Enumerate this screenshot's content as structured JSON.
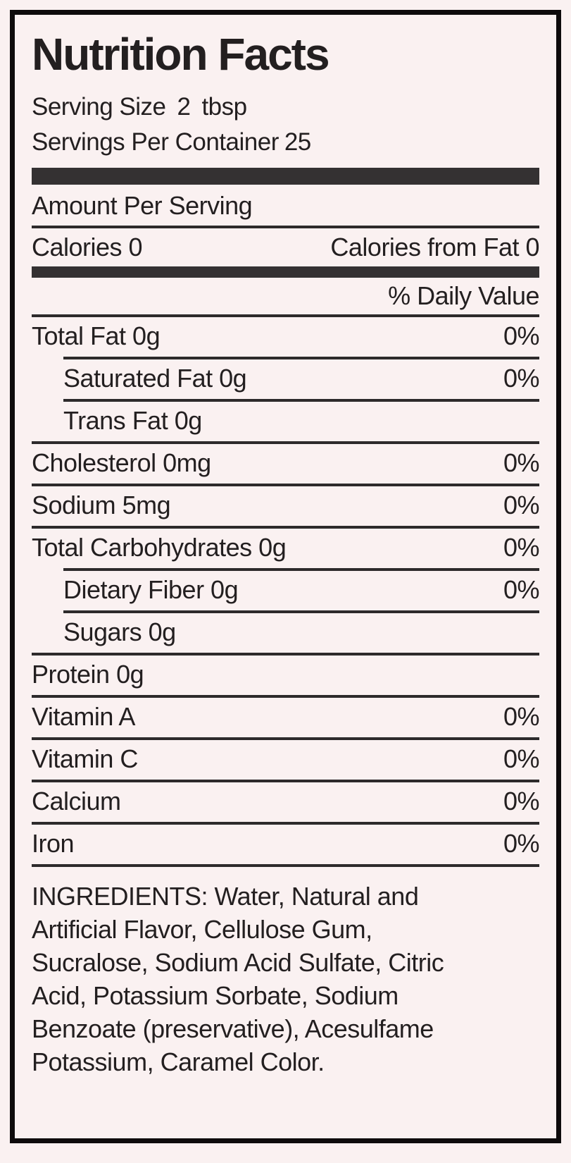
{
  "colors": {
    "bg": "#faf1f1",
    "ink": "#231f20",
    "bar": "#343132",
    "line": "#2d2a2b",
    "border": "#0e0b0c"
  },
  "label": {
    "title": "Nutrition Facts",
    "serving_size": {
      "label": "Serving Size",
      "value": "2",
      "unit": "tbsp"
    },
    "servings_per_container": {
      "label": "Servings Per Container",
      "value": "25"
    },
    "amount_per_serving": "Amount Per Serving",
    "calories": "Calories 0",
    "calories_from_fat": "Calories from Fat 0",
    "daily_value_header": "% Daily Value",
    "rows": [
      {
        "name": "Total Fat 0g",
        "dv": "0%",
        "indent": false
      },
      {
        "name": "Saturated Fat 0g",
        "dv": "0%",
        "indent": true
      },
      {
        "name": "Trans Fat 0g",
        "dv": "",
        "indent": true
      },
      {
        "name": "Cholesterol 0mg",
        "dv": "0%",
        "indent": false
      },
      {
        "name": "Sodium 5mg",
        "dv": "0%",
        "indent": false
      },
      {
        "name": "Total Carbohydrates 0g",
        "dv": "0%",
        "indent": false
      },
      {
        "name": "Dietary Fiber 0g",
        "dv": "0%",
        "indent": true
      },
      {
        "name": "Sugars 0g",
        "dv": "",
        "indent": true
      },
      {
        "name": "Protein 0g",
        "dv": "",
        "indent": false
      },
      {
        "name": "Vitamin A",
        "dv": "0%",
        "indent": false
      },
      {
        "name": "Vitamin C",
        "dv": "0%",
        "indent": false
      },
      {
        "name": "Calcium",
        "dv": "0%",
        "indent": false
      },
      {
        "name": "Iron",
        "dv": "0%",
        "indent": false
      }
    ],
    "ingredients_lines": [
      "INGREDIENTS: Water, Natural and",
      "Artificial Flavor, Cellulose Gum,",
      "Sucralose, Sodium Acid Sulfate, Citric",
      "Acid, Potassium Sorbate, Sodium",
      "Benzoate (preservative), Acesulfame",
      "Potassium, Caramel Color."
    ]
  }
}
